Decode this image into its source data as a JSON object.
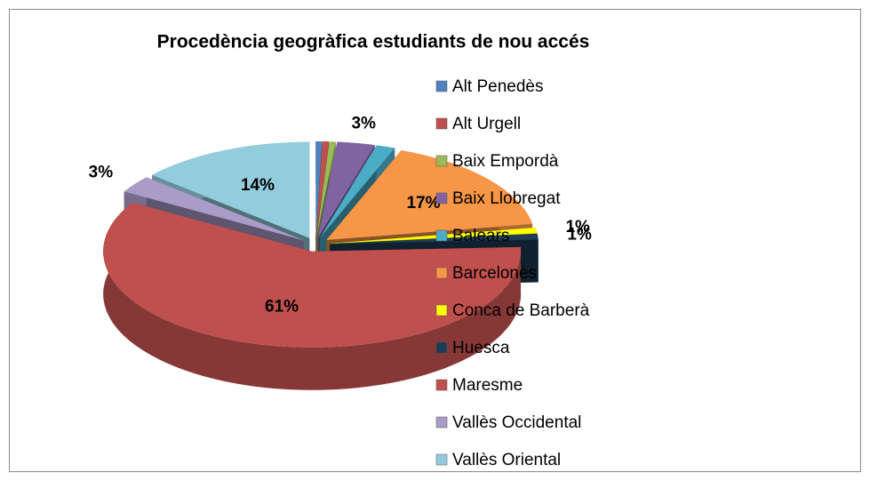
{
  "chart_data": {
    "type": "pie",
    "title": "Procedència geogràfica estudiants de nou accés",
    "categories": [
      "Alt Penedès",
      "Alt Urgell",
      "Baix Empordà",
      "Baix Llobregat",
      "Balears",
      "Barcelonès",
      "Conca de Barberà",
      "Huesca",
      "Maresme",
      "Vallès Occidental",
      "Vallès Oriental"
    ],
    "values": [
      0.5,
      0.5,
      0.5,
      3,
      1.5,
      17,
      1,
      1,
      61,
      3,
      14
    ],
    "value_labels": [
      null,
      null,
      null,
      "3%",
      null,
      "17%",
      "1%",
      "1%",
      "61%",
      "3%",
      "14%"
    ],
    "colors": [
      "#4f81bd",
      "#c0504d",
      "#9bbb59",
      "#8064a2",
      "#4bacc6",
      "#f79646",
      "#ffff00",
      "#1f3b55",
      "#c0504d",
      "#a99cc8",
      "#93cddd"
    ]
  }
}
